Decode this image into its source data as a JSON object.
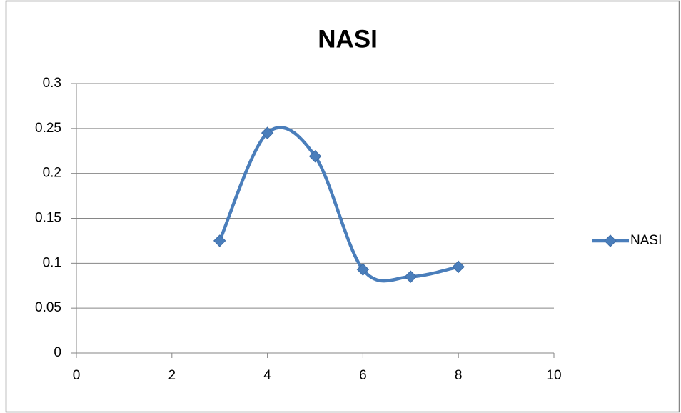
{
  "chart_data": {
    "type": "line",
    "title": "NASI",
    "x": [
      3,
      4,
      5,
      6,
      7,
      8
    ],
    "series": [
      {
        "name": "NASI",
        "color": "#4a7ebb",
        "values": [
          0.125,
          0.245,
          0.219,
          0.093,
          0.085,
          0.096
        ]
      }
    ],
    "xlim": [
      0,
      10
    ],
    "xticks": [
      0,
      2,
      4,
      6,
      8,
      10
    ],
    "ylim": [
      0,
      0.3
    ],
    "yticks": [
      0,
      0.05,
      0.1,
      0.15,
      0.2,
      0.25,
      0.3
    ],
    "grid": true,
    "smooth": true,
    "legend": "right"
  }
}
